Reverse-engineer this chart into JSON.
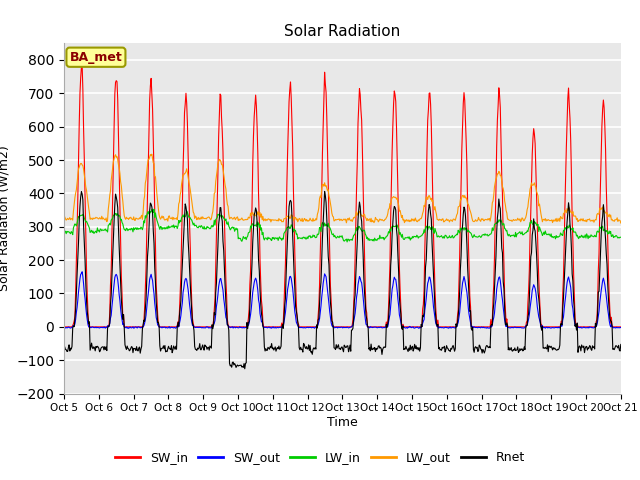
{
  "title": "Solar Radiation",
  "ylabel": "Solar Radiation (W/m2)",
  "xlabel": "Time",
  "ylim": [
    -200,
    850
  ],
  "yticks": [
    -200,
    -100,
    0,
    100,
    200,
    300,
    400,
    500,
    600,
    700,
    800
  ],
  "num_days": 16,
  "start_day": 5,
  "annotation_text": "BA_met",
  "colors": {
    "SW_in": "#ff0000",
    "SW_out": "#0000ff",
    "LW_in": "#00cc00",
    "LW_out": "#ff9900",
    "Rnet": "#000000"
  },
  "legend_entries": [
    "SW_in",
    "SW_out",
    "LW_in",
    "LW_out",
    "Rnet"
  ],
  "background_color": "#e8e8e8",
  "figure_background": "#ffffff",
  "linewidth": 0.8,
  "grid_color": "#ffffff",
  "annotation_box_color": "#ffff99",
  "annotation_box_edge": "#999900",
  "sw_peaks": [
    775,
    750,
    735,
    695,
    685,
    690,
    725,
    730,
    715,
    710,
    715,
    695,
    700,
    590,
    700,
    665
  ],
  "lw_out_peaks": [
    490,
    515,
    520,
    465,
    500,
    340,
    330,
    430,
    340,
    390,
    390,
    390,
    460,
    430,
    350,
    350
  ],
  "lw_in_night": [
    285,
    290,
    295,
    300,
    295,
    265,
    265,
    270,
    260,
    265,
    270,
    270,
    275,
    280,
    270,
    270
  ],
  "lw_in_day": [
    335,
    340,
    350,
    335,
    335,
    310,
    300,
    310,
    295,
    302,
    298,
    293,
    315,
    313,
    298,
    293
  ],
  "lw_out_night": [
    325,
    325,
    325,
    325,
    325,
    320,
    320,
    320,
    320,
    320,
    320,
    320,
    320,
    320,
    320,
    320
  ],
  "rnet_night": -65,
  "rnet_deep_day": 4,
  "rnet_deep_val": -115
}
